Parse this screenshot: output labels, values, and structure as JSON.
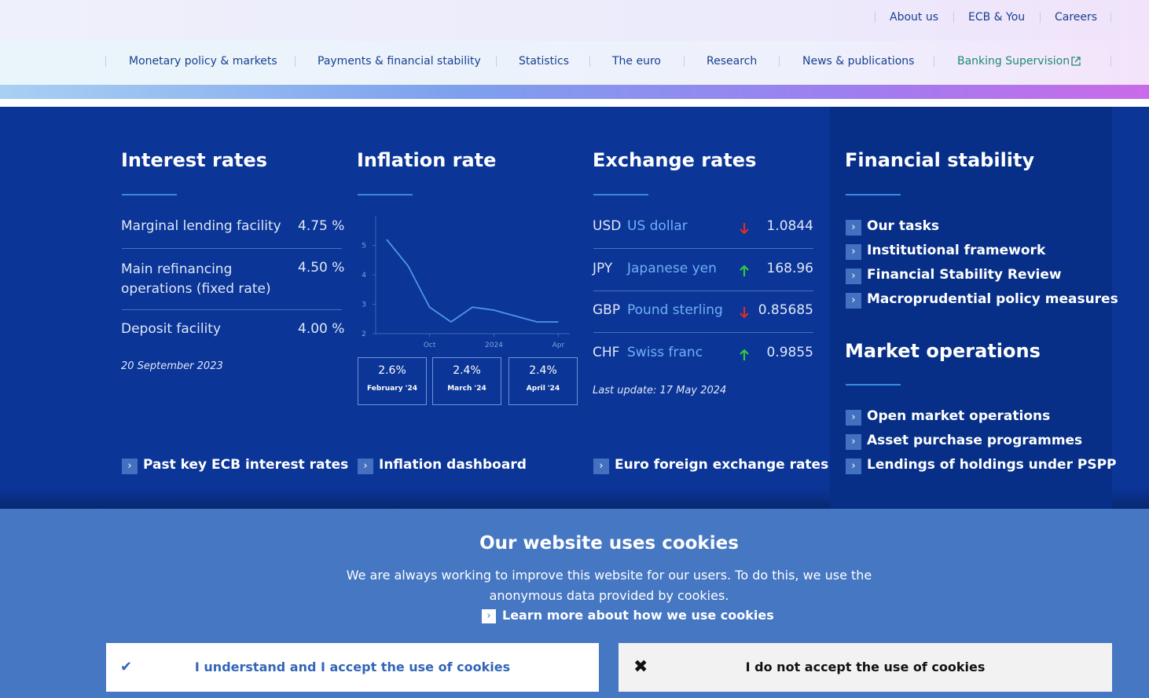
{
  "top_links": [
    "About us",
    "ECB & You",
    "Careers"
  ],
  "nav": [
    "Monetary policy & markets",
    "Payments & financial stability",
    "Statistics",
    "The euro",
    "Research",
    "News & publications",
    "Banking Supervision"
  ],
  "interest_rates": {
    "title": "Interest rates",
    "rows": [
      [
        "Marginal lending facility",
        "4.75 %"
      ],
      [
        "Main refinancing operations (fixed rate)",
        "4.50 %"
      ],
      [
        "Deposit facility",
        "4.00 %"
      ]
    ],
    "date": "20 September 2023",
    "link": "Past key ECB interest rates"
  },
  "inflation": {
    "title": "Inflation rate",
    "boxes": [
      [
        "2.6%",
        "February '24"
      ],
      [
        "2.4%",
        "March '24"
      ],
      [
        "2.4%",
        "April '24"
      ]
    ],
    "link": "Inflation dashboard"
  },
  "chart_data": {
    "type": "line",
    "categories": [
      null,
      null,
      "Oct",
      null,
      null,
      "2024",
      null,
      null,
      "Apr"
    ],
    "values": [
      5.2,
      4.3,
      2.9,
      2.4,
      2.9,
      2.8,
      2.6,
      2.4,
      2.4
    ],
    "color": "#4f95e8",
    "ylim": [
      2,
      6
    ],
    "yticks": [
      2,
      3,
      4,
      5
    ]
  },
  "exchange_rates": {
    "title": "Exchange rates",
    "rows": [
      [
        "USD",
        "US dollar",
        "1.0844"
      ],
      [
        "JPY",
        "Japanese yen",
        "168.96"
      ],
      [
        "GBP",
        "Pound sterling",
        "0.85685"
      ],
      [
        "CHF",
        "Swiss franc",
        "0.9855"
      ]
    ],
    "updated": "Last update: 17 May 2024",
    "link": "Euro foreign exchange rates"
  },
  "financial_stability": {
    "title": "Financial stability",
    "links": [
      "Our tasks",
      "Institutional framework",
      "Financial Stability Review",
      "Macroprudential policy measures"
    ]
  },
  "market_operations": {
    "title": "Market operations",
    "links": [
      "Open market operations",
      "Asset purchase programmes",
      "Lendings of holdings under PSPP"
    ]
  },
  "cookies": {
    "title": "Our website uses cookies",
    "text": "We are always working to improve this website for our users. To do this, we use the anonymous data provided by cookies.",
    "learn_more": "Learn more about how we use cookies",
    "accept": "I understand and I accept the use of cookies",
    "decline": "I do not accept the use of cookies"
  }
}
